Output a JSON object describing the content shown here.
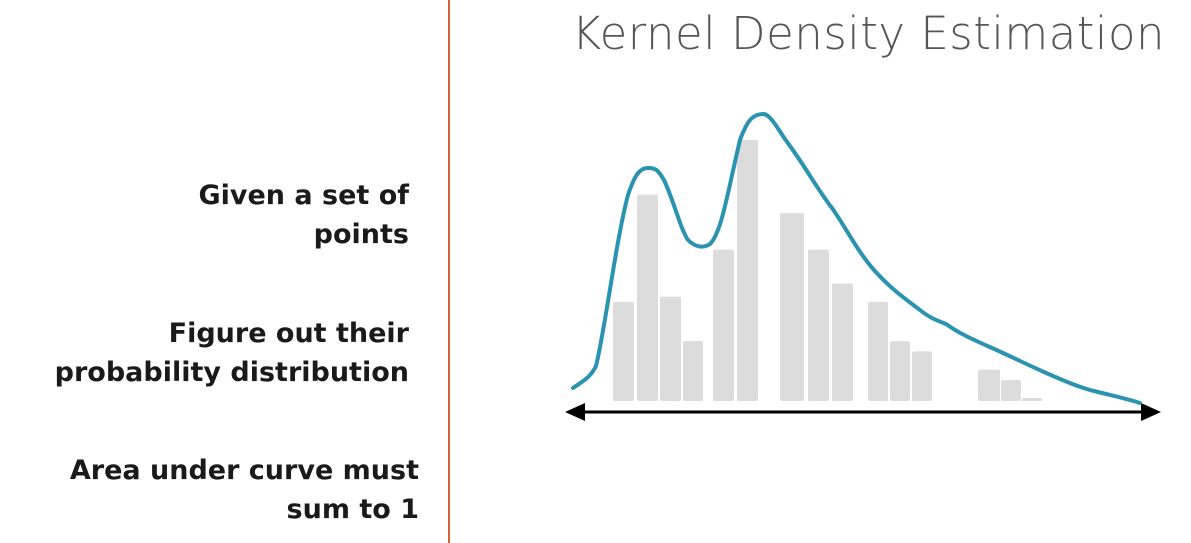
{
  "slide": {
    "title": "Kernel Density Estimation",
    "points": [
      {
        "line1": "Given a set of",
        "line2": "points"
      },
      {
        "line1": "Figure out their",
        "line2": "probability distribution"
      },
      {
        "line1": "Area under curve must",
        "line2": "sum to 1"
      }
    ]
  },
  "colors": {
    "divider": "#d9603a",
    "curve": "#2a93b0",
    "bars": "#dcdcdc",
    "axis": "#000000",
    "title": "#555555",
    "text": "#1a1a1a"
  },
  "diagram": {
    "bar_relative_heights": [
      0.38,
      0.79,
      0.4,
      0.23,
      0.58,
      1.0,
      0.72,
      0.58,
      0.45,
      0.38,
      0.23,
      0.19,
      0.12,
      0.08
    ],
    "axis_arrows": "both-ends"
  }
}
